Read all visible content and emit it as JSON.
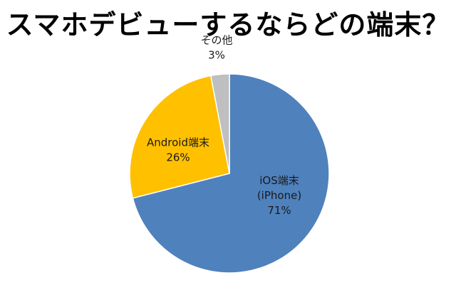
{
  "chart_data": {
    "type": "pie",
    "title": "スマホデビューするならどの端末？",
    "slices": [
      {
        "label": "iOS端末\n(iPhone)",
        "value_label": "71%",
        "value": 71,
        "color": "#4f81bd"
      },
      {
        "label": "Android端末",
        "value_label": "26%",
        "value": 26,
        "color": "#ffc000"
      },
      {
        "label": "その他",
        "value_label": "3%",
        "value": 3,
        "color": "#bfbfbf"
      }
    ],
    "start": "12 o'clock, clockwise",
    "legend": "none (labels on/next to slices)"
  }
}
